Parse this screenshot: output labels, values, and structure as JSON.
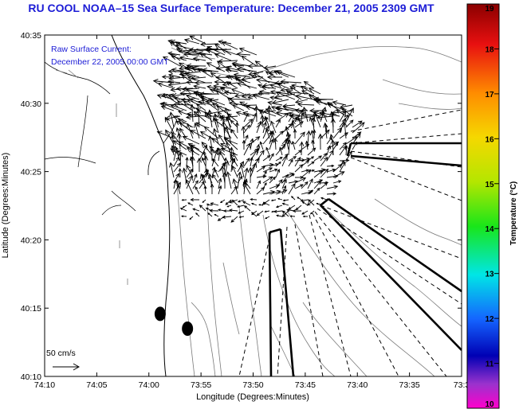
{
  "chart_data": {
    "type": "field",
    "title": "RU COOL  NOAA–15  Sea Surface Temperature:  December 21, 2005 2309 GMT",
    "legend_lines": [
      "Raw Surface Current:",
      "December 22, 2005 00:00 GMT"
    ],
    "xlabel": "Longitude (Degrees:Minutes)",
    "ylabel": "Latitude (Degrees:Minutes)",
    "x_ticks": [
      "74:10",
      "74:05",
      "74:00",
      "73:55",
      "73:50",
      "73:45",
      "73:40",
      "73:35",
      "73:3"
    ],
    "y_ticks": [
      "40:35",
      "40:30",
      "40:25",
      "40:20",
      "40:15",
      "40:10"
    ],
    "xlim": [
      -74.1667,
      -73.5
    ],
    "ylim": [
      40.1667,
      40.5833
    ],
    "colorbar": {
      "label": "Temperature (°C)",
      "range": [
        10,
        19
      ],
      "ticks": [
        "19",
        "18",
        "17",
        "16",
        "15",
        "14",
        "13",
        "12",
        "11",
        "10"
      ]
    },
    "scale_label": "50 cm/s",
    "markers": [
      {
        "lon": -73.982,
        "lat": 40.243
      },
      {
        "lon": -73.9383,
        "lat": 40.225
      }
    ]
  }
}
